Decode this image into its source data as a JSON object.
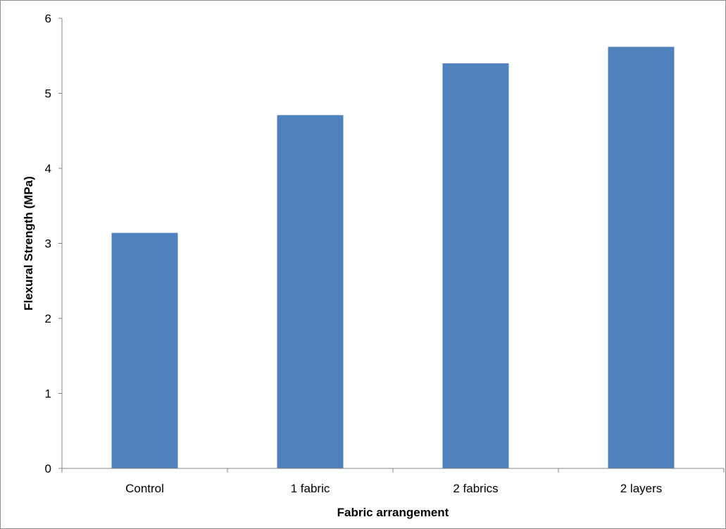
{
  "chart_data": {
    "type": "bar",
    "title": "",
    "xlabel": "Fabric arrangement",
    "ylabel": "Flexural Strength (MPa)",
    "categories": [
      "Control",
      "1 fabric",
      "2 fabrics",
      "2 layers"
    ],
    "series": [
      {
        "values": [
          3.14,
          4.71,
          5.4,
          5.62
        ]
      }
    ],
    "ylim": [
      0,
      6
    ],
    "yticks": [
      0,
      1,
      2,
      3,
      4,
      5,
      6
    ],
    "grid": false,
    "legend": "none",
    "bar_color": "#4f81bd",
    "axis_color": "#868686"
  }
}
